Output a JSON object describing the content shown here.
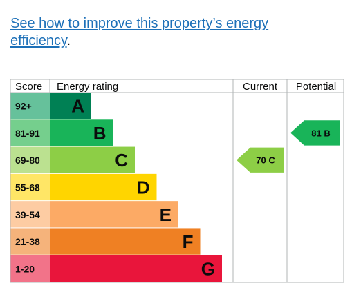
{
  "intro": {
    "link_text": "See how to improve this property’s energy efficiency",
    "trailing": "."
  },
  "chart_data": {
    "type": "bar",
    "headers": {
      "score": "Score",
      "rating": "Energy rating",
      "current": "Current",
      "potential": "Potential"
    },
    "bands": [
      {
        "score": "92+",
        "letter": "A",
        "color": "#008054",
        "score_color": "#66c19b"
      },
      {
        "score": "81-91",
        "letter": "B",
        "color": "#19b459",
        "score_color": "#75cf8d"
      },
      {
        "score": "69-80",
        "letter": "C",
        "color": "#8dce46",
        "score_color": "#bbe190"
      },
      {
        "score": "55-68",
        "letter": "D",
        "color": "#ffd500",
        "score_color": "#ffe666"
      },
      {
        "score": "39-54",
        "letter": "E",
        "color": "#fcaa65",
        "score_color": "#fdcca3"
      },
      {
        "score": "21-38",
        "letter": "F",
        "color": "#ef8023",
        "score_color": "#f5b37b"
      },
      {
        "score": "1-20",
        "letter": "G",
        "color": "#e9153b",
        "score_color": "#f27389"
      }
    ],
    "current": {
      "value": 70,
      "band": "C",
      "label": "70  C",
      "color": "#8dce46"
    },
    "potential": {
      "value": 81,
      "band": "B",
      "label": "81  B",
      "color": "#19b459"
    }
  }
}
